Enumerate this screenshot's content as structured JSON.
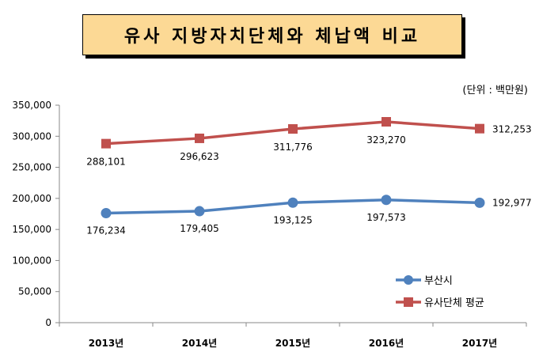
{
  "title": "유사 지방자치단체와 체납액 비교",
  "unit": "(단위 : 백만원)",
  "chart_data": {
    "type": "line",
    "categories": [
      "2013년",
      "2014년",
      "2015년",
      "2016년",
      "2017년"
    ],
    "series": [
      {
        "name": "부산시",
        "values": [
          176234,
          179405,
          193125,
          197573,
          192977
        ],
        "color": "#4f81bd",
        "marker": "circle"
      },
      {
        "name": "유사단체 평균",
        "values": [
          288101,
          296623,
          311776,
          323270,
          312253
        ],
        "color": "#c0504d",
        "marker": "square"
      }
    ],
    "data_labels": {
      "부산시": [
        "176,234",
        "179,405",
        "193,125",
        "197,573",
        "192,977"
      ],
      "유사단체 평균": [
        "288,101",
        "296,623",
        "311,776",
        "323,270",
        "312,253"
      ]
    },
    "yticks": [
      "0",
      "50,000",
      "100,000",
      "150,000",
      "200,000",
      "250,000",
      "300,000",
      "350,000"
    ],
    "ylim": [
      0,
      350000
    ],
    "grid": false,
    "legend": "bottom-right"
  }
}
